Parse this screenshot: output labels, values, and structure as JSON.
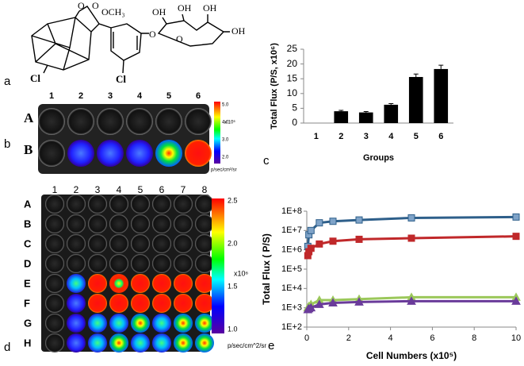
{
  "chart_data": [
    {
      "type": "bar",
      "ylabel": "Total Flux (P/S, x10⁶)",
      "xlabel": "Groups",
      "categories": [
        "1",
        "2",
        "3",
        "4",
        "5",
        "6"
      ],
      "values": [
        0,
        4,
        3.6,
        6.2,
        15.6,
        18.3
      ],
      "errors": [
        0,
        0.3,
        0.3,
        0.4,
        1.0,
        1.3
      ],
      "color": "#000000",
      "ylim": [
        0,
        25
      ],
      "yticks": [
        0,
        5,
        10,
        15,
        20,
        25
      ]
    },
    {
      "type": "line",
      "ylabel": "Total Flux ( P/S)",
      "xlabel": "Cell Numbers (x10⁵)",
      "log_y": true,
      "x": [
        0.05,
        0.1,
        0.2,
        0.6,
        1.25,
        2.5,
        5,
        10
      ],
      "series": [
        {
          "color": "#2e5f8a",
          "marker": "square",
          "values": [
            1500000,
            6000000,
            10000000,
            25000000,
            30000000,
            35000000,
            45000000,
            50000000
          ]
        },
        {
          "color": "#c0282a",
          "marker": "square",
          "values": [
            500000,
            800000,
            1200000,
            2000000,
            2800000,
            3500000,
            4000000,
            5000000
          ]
        },
        {
          "color": "#9bc85a",
          "marker": "triangle",
          "values": [
            1000,
            1200,
            1500,
            2500,
            2500,
            2800,
            3500,
            3500
          ]
        },
        {
          "color": "#6a3b9a",
          "marker": "triangle",
          "values": [
            800,
            900,
            1000,
            1500,
            1800,
            2000,
            2200,
            2200
          ]
        }
      ],
      "xlim": [
        0,
        10
      ],
      "xticks": [
        0,
        2,
        4,
        6,
        8,
        10
      ],
      "ylim": [
        100,
        100000000
      ],
      "yticks": [
        {
          "value": 100,
          "label": "1E+2"
        },
        {
          "value": 1000,
          "label": "1E+3"
        },
        {
          "value": 10000,
          "label": "1E+4"
        },
        {
          "value": 100000,
          "label": "1E+5"
        },
        {
          "value": 1000000,
          "label": "1E+6"
        },
        {
          "value": 10000000,
          "label": "1E+7"
        },
        {
          "value": 100000000,
          "label": "1E+8"
        }
      ]
    }
  ],
  "panel_labels": [
    "a",
    "b",
    "c",
    "d",
    "e"
  ],
  "structure": {
    "labels": [
      "O",
      "O",
      "OCH₃",
      "Cl",
      "Cl",
      "O",
      "O",
      "OH",
      "OH",
      "OH",
      "OH"
    ]
  },
  "plate_b": {
    "columns": [
      "1",
      "2",
      "3",
      "4",
      "5",
      "6"
    ],
    "rows": [
      "A",
      "B"
    ],
    "colorbar_ticks": [
      "5.0",
      "4.0",
      "3.0",
      "2.0"
    ],
    "unit": "x 10⁶",
    "colorbar_label": "p/sec/cm²/sr"
  },
  "plate_d": {
    "columns": [
      "1",
      "2",
      "3",
      "4",
      "5",
      "6",
      "7",
      "8"
    ],
    "rows": [
      "A",
      "B",
      "C",
      "D",
      "E",
      "F",
      "G",
      "H"
    ],
    "colorbar_ticks": [
      "2.5",
      "2.0",
      "1.5",
      "1.0"
    ],
    "unit": "x10⁶",
    "colorbar_label": "p/sec/cm^2/sr"
  }
}
